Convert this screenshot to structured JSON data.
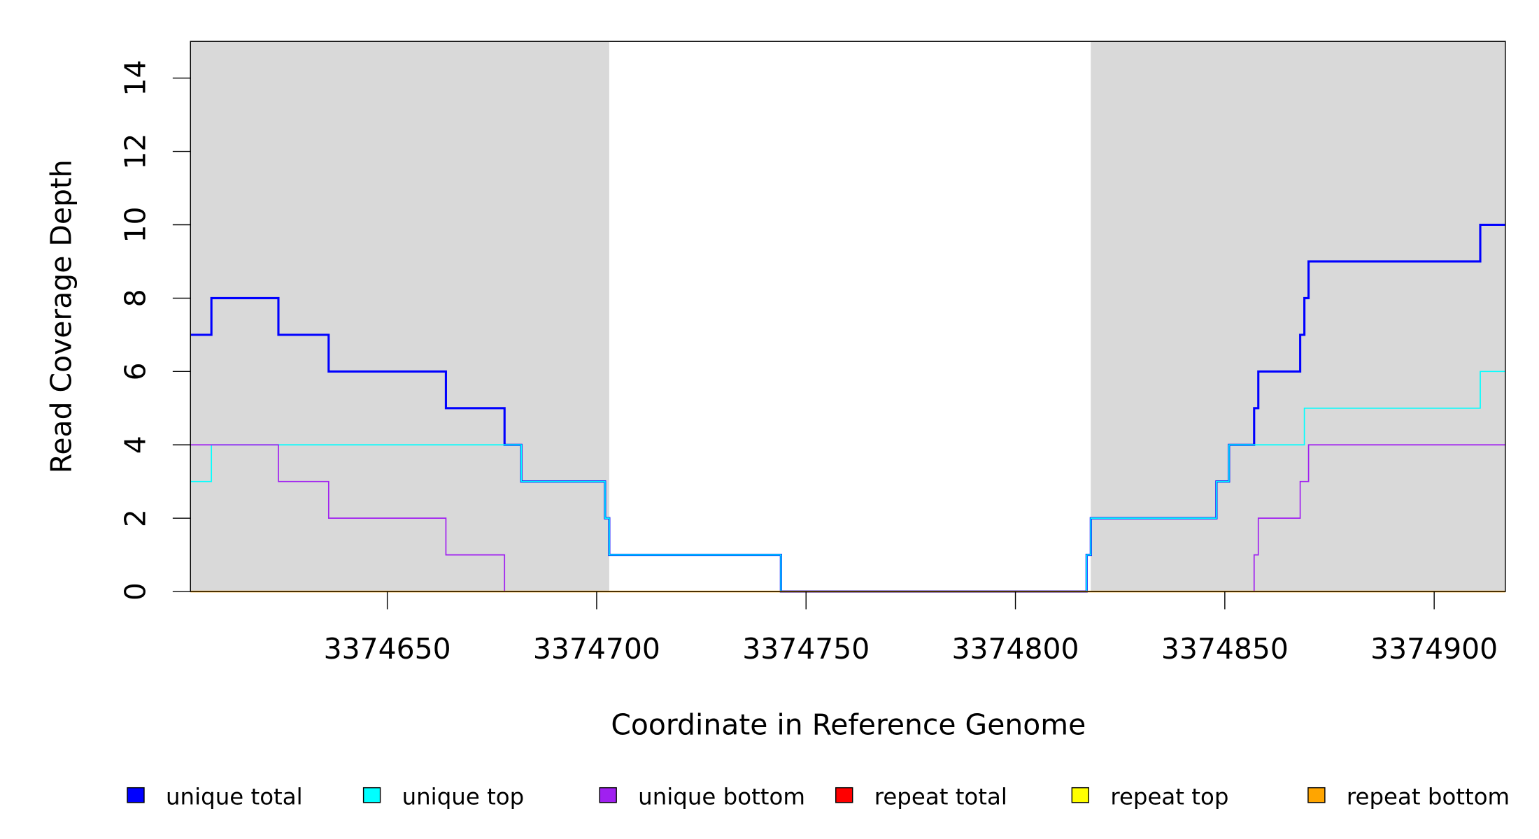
{
  "chart_data": {
    "type": "line",
    "step": true,
    "title": "",
    "xlabel": "Coordinate in Reference Genome",
    "ylabel": "Read Coverage Depth",
    "xlim": [
      3374603,
      3374917
    ],
    "ylim": [
      0,
      15
    ],
    "xticks": [
      3374650,
      3374700,
      3374750,
      3374800,
      3374850,
      3374900
    ],
    "xtick_labels": [
      "3374650",
      "3374700",
      "3374750",
      "3374800",
      "3374850",
      "3374900"
    ],
    "yticks": [
      0,
      2,
      4,
      6,
      8,
      10,
      12,
      14
    ],
    "ytick_labels": [
      "0",
      "2",
      "4",
      "6",
      "8",
      "10",
      "12",
      "14"
    ],
    "shaded_regions": [
      [
        3374603,
        3374703
      ],
      [
        3374818,
        3374917
      ]
    ],
    "shade_color": "#d9d9d9",
    "legend_position": "bottom",
    "series": [
      {
        "name": "unique total",
        "color": "#0000ff",
        "width": 2.2,
        "steps": [
          [
            3374603,
            7
          ],
          [
            3374608,
            8
          ],
          [
            3374624,
            7
          ],
          [
            3374636,
            6
          ],
          [
            3374664,
            5
          ],
          [
            3374678,
            4
          ],
          [
            3374682,
            3
          ],
          [
            3374702,
            2
          ],
          [
            3374703,
            1
          ],
          [
            3374744,
            0
          ],
          [
            3374817,
            1
          ],
          [
            3374818,
            2
          ],
          [
            3374848,
            3
          ],
          [
            3374851,
            4
          ],
          [
            3374857,
            5
          ],
          [
            3374858,
            6
          ],
          [
            3374868,
            7
          ],
          [
            3374869,
            8
          ],
          [
            3374870,
            9
          ],
          [
            3374911,
            10
          ]
        ]
      },
      {
        "name": "unique top",
        "color": "#00ffff",
        "width": 1.2,
        "steps": [
          [
            3374603,
            3
          ],
          [
            3374608,
            4
          ],
          [
            3374682,
            3
          ],
          [
            3374702,
            2
          ],
          [
            3374703,
            1
          ],
          [
            3374744,
            0
          ],
          [
            3374817,
            1
          ],
          [
            3374818,
            2
          ],
          [
            3374848,
            3
          ],
          [
            3374851,
            4
          ],
          [
            3374869,
            5
          ],
          [
            3374911,
            6
          ]
        ]
      },
      {
        "name": "unique bottom",
        "color": "#a020f0",
        "width": 1.2,
        "steps": [
          [
            3374603,
            4
          ],
          [
            3374624,
            3
          ],
          [
            3374636,
            2
          ],
          [
            3374664,
            1
          ],
          [
            3374678,
            0
          ],
          [
            3374857,
            1
          ],
          [
            3374858,
            2
          ],
          [
            3374868,
            3
          ],
          [
            3374870,
            4
          ]
        ]
      },
      {
        "name": "repeat total",
        "color": "#ff0000",
        "width": 1.2,
        "steps": [
          [
            3374603,
            0
          ]
        ]
      },
      {
        "name": "repeat top",
        "color": "#ffff00",
        "width": 1.2,
        "steps": [
          [
            3374603,
            0
          ]
        ]
      },
      {
        "name": "repeat bottom",
        "color": "#ffa500",
        "width": 1.6,
        "steps": [
          [
            3374603,
            0
          ]
        ]
      }
    ]
  }
}
